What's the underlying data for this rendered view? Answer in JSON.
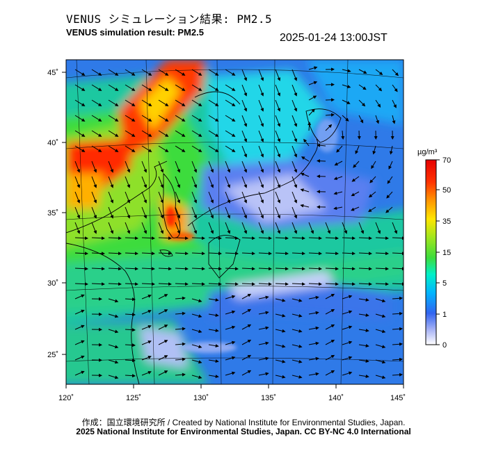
{
  "header": {
    "title_jp": "VENUS シミュレーション結果: PM2.5",
    "title_en": "VENUS simulation result: PM2.5",
    "timestamp": "2025-01-24 13:00JST"
  },
  "map": {
    "lon_labels": [
      "120˚",
      "125˚",
      "130˚",
      "135˚",
      "140˚",
      "145˚"
    ],
    "lat_labels": [
      "45˚",
      "40˚",
      "35˚",
      "30˚",
      "25˚"
    ]
  },
  "colorbar": {
    "unit": "µg/m³",
    "ticks": [
      "70",
      "50",
      "35",
      "15",
      "5",
      "1",
      "0"
    ],
    "colors": [
      "#ffffff",
      "#a9b4f5",
      "#3264f0",
      "#00b4ff",
      "#00f0c8",
      "#3cdc3c",
      "#a0e61e",
      "#ffe600",
      "#ff9600",
      "#ff3200",
      "#e60000"
    ]
  },
  "footer": {
    "credit": "作成：国立環境研究所 / Created by National Institute for Environmental Studies, Japan.",
    "license": "2025 National Institute for Environmental Studies, Japan. CC BY-NC 4.0 International"
  }
}
